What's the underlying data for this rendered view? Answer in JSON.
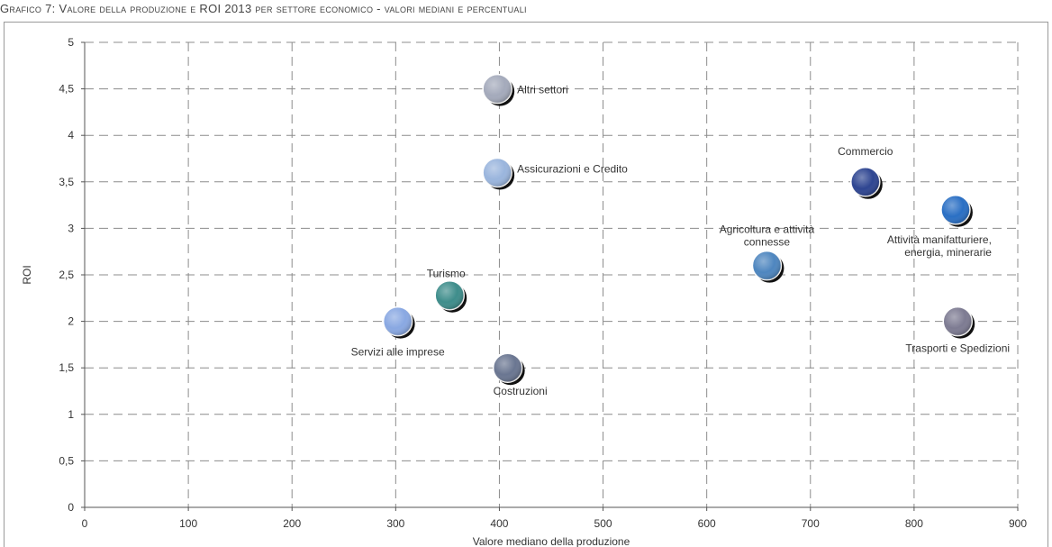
{
  "title": "Grafico 7: Valore della produzione e ROI 2013 per settore economico - valori mediani e percentuali",
  "chart_data": {
    "type": "scatter",
    "title": "Grafico 7: Valore della produzione e ROI 2013 per settore economico - valori mediani e percentuali",
    "xlabel": "Valore mediano della produzione",
    "ylabel": "ROI",
    "xlim": [
      0,
      900
    ],
    "ylim": [
      0,
      5
    ],
    "x_ticks": [
      "0",
      "100",
      "200",
      "300",
      "400",
      "500",
      "600",
      "700",
      "800",
      "900"
    ],
    "y_ticks": [
      "0",
      "0,5",
      "1",
      "1,5",
      "2",
      "2,5",
      "3",
      "3,5",
      "4",
      "4,5",
      "5"
    ],
    "grid": true,
    "points": [
      {
        "label": "Altri settori",
        "x": 398,
        "y": 4.5,
        "color": "#a4aabb"
      },
      {
        "label": "Assicurazioni e Credito",
        "x": 398,
        "y": 3.6,
        "color": "#9ab5dd"
      },
      {
        "label": "Commercio",
        "x": 753,
        "y": 3.5,
        "color": "#2e4591"
      },
      {
        "label": "Attività manifatturiere, energia, minerarie",
        "x": 840,
        "y": 3.2,
        "color": "#2a6fc4"
      },
      {
        "label": "Agricoltura e attività connesse",
        "x": 658,
        "y": 2.6,
        "color": "#4e86bf"
      },
      {
        "label": "Turismo",
        "x": 352,
        "y": 2.28,
        "color": "#3e8d8b"
      },
      {
        "label": "Servizi alle imprese",
        "x": 302,
        "y": 2.0,
        "color": "#89a8e2"
      },
      {
        "label": "Trasporti e Spedizioni",
        "x": 842,
        "y": 2.0,
        "color": "#7d7b92"
      },
      {
        "label": "Costruzioni",
        "x": 408,
        "y": 1.5,
        "color": "#6a7691"
      }
    ]
  }
}
